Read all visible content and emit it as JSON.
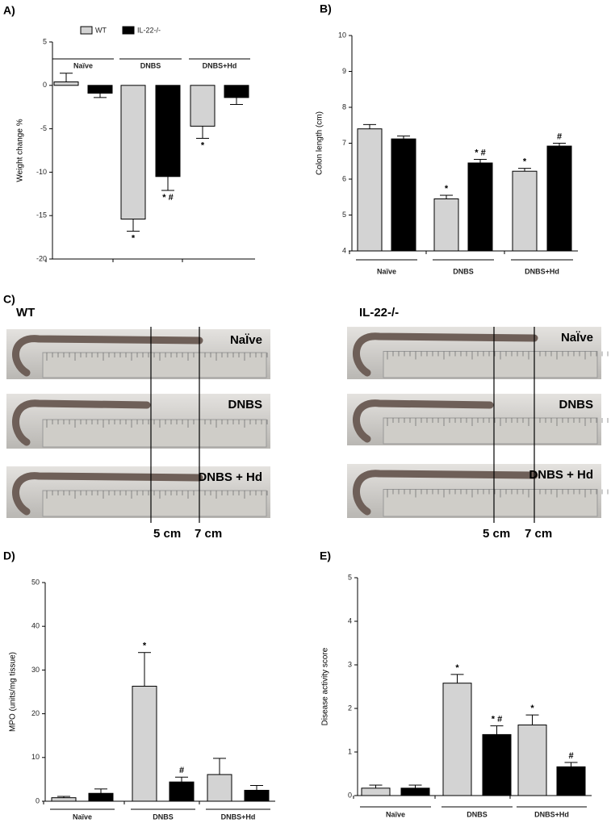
{
  "chart_data": [
    {
      "type": "bar",
      "panel": "A)",
      "y_label": "Weight change %",
      "categories": [
        "Naïve",
        "DNBS",
        "DNBS+Hd"
      ],
      "ylim": [
        -20,
        5
      ],
      "yticks": [
        -20,
        -15,
        -10,
        -5,
        0,
        5
      ],
      "legend": true,
      "series": [
        {
          "name": "WT",
          "color": "#d3d3d3",
          "values": [
            0.4,
            -15.4,
            -4.7
          ],
          "errors": [
            1.0,
            1.4,
            1.4
          ],
          "significance": [
            null,
            "*",
            "*"
          ]
        },
        {
          "name": "IL-22-/-",
          "color": "#000000",
          "values": [
            -0.9,
            -10.5,
            -1.4
          ],
          "errors": [
            0.5,
            1.6,
            0.8
          ],
          "significance": [
            null,
            "* #",
            null
          ]
        }
      ]
    },
    {
      "type": "bar",
      "panel": "B)",
      "y_label": "Colon length (cm)",
      "categories": [
        "Naïve",
        "DNBS",
        "DNBS+Hd"
      ],
      "ylim": [
        4,
        10
      ],
      "yticks": [
        4,
        5,
        6,
        7,
        8,
        9,
        10
      ],
      "legend": false,
      "series": [
        {
          "name": "WT",
          "color": "#d3d3d3",
          "values": [
            7.4,
            5.45,
            6.22
          ],
          "errors": [
            0.12,
            0.1,
            0.08
          ],
          "significance": [
            null,
            "*",
            "*"
          ]
        },
        {
          "name": "IL-22-/-",
          "color": "#000000",
          "values": [
            7.12,
            6.45,
            6.92
          ],
          "errors": [
            0.08,
            0.1,
            0.08
          ],
          "significance": [
            null,
            "* #",
            "#"
          ]
        }
      ]
    },
    {
      "type": "bar",
      "panel": "D)",
      "y_label": "MPO (units/mg tissue)",
      "categories": [
        "Naïve",
        "DNBS",
        "DNBS+Hd"
      ],
      "ylim": [
        0,
        50
      ],
      "yticks": [
        0,
        10,
        20,
        30,
        40,
        50
      ],
      "legend": false,
      "series": [
        {
          "name": "WT",
          "color": "#d3d3d3",
          "values": [
            0.8,
            26.3,
            6.1
          ],
          "errors": [
            0.3,
            7.7,
            3.7
          ],
          "significance": [
            null,
            "*",
            null
          ]
        },
        {
          "name": "IL-22-/-",
          "color": "#000000",
          "values": [
            1.8,
            4.4,
            2.5
          ],
          "errors": [
            1.0,
            1.1,
            1.1
          ],
          "significance": [
            null,
            "#",
            null
          ]
        }
      ]
    },
    {
      "type": "bar",
      "panel": "E)",
      "y_label": "Disease activity score",
      "categories": [
        "Naïve",
        "DNBS",
        "DNBS+Hd"
      ],
      "ylim": [
        0,
        5
      ],
      "yticks": [
        0,
        1,
        2,
        3,
        4,
        5
      ],
      "legend": false,
      "series": [
        {
          "name": "WT",
          "color": "#d3d3d3",
          "values": [
            0.17,
            2.58,
            1.62
          ],
          "errors": [
            0.07,
            0.2,
            0.23
          ],
          "significance": [
            null,
            "*",
            "*"
          ]
        },
        {
          "name": "IL-22-/-",
          "color": "#000000",
          "values": [
            0.17,
            1.4,
            0.66
          ],
          "errors": [
            0.07,
            0.2,
            0.1
          ],
          "significance": [
            null,
            "* #",
            "#"
          ]
        }
      ]
    }
  ],
  "photo_panel": {
    "panel": "C)",
    "groups": [
      {
        "title": "WT",
        "rows": [
          "NaÏve",
          "DNBS",
          "DNBS + Hd"
        ],
        "markers": [
          "5 cm",
          "7 cm"
        ]
      },
      {
        "title": "IL-22-/-",
        "rows": [
          "NaÏve",
          "DNBS",
          "DNBS + Hd"
        ],
        "markers": [
          "5 cm",
          "7 cm"
        ]
      }
    ]
  }
}
